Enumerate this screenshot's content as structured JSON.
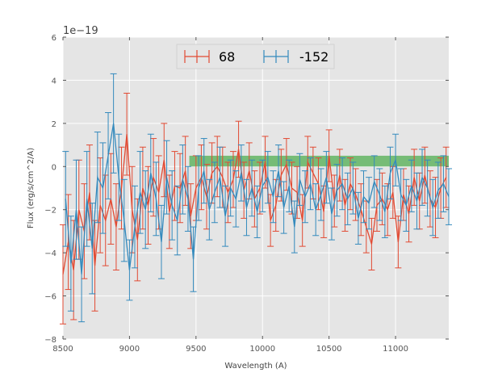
{
  "chart_data": {
    "type": "line",
    "title": "",
    "xlabel": "Wavelength (A)",
    "ylabel": "Flux (erg/s/cm^2/A)",
    "offset_label": "1e−19",
    "xlim": [
      8500,
      11400
    ],
    "ylim": [
      -8,
      6
    ],
    "x_ticks": [
      8500,
      9000,
      9500,
      10000,
      10500,
      11000
    ],
    "y_ticks": [
      -8,
      -6,
      -4,
      -2,
      0,
      2,
      4,
      6
    ],
    "grid": true,
    "legend_position": "top-center",
    "band": {
      "x_start": 9450,
      "x_end": 11400,
      "y_start": 0.0,
      "y_end": 0.5,
      "color": "#2ca02c"
    },
    "series": [
      {
        "name": "68",
        "color": "#e24a33",
        "x": [
          8500,
          8540,
          8580,
          8620,
          8660,
          8700,
          8740,
          8780,
          8820,
          8860,
          8900,
          8940,
          8980,
          9020,
          9060,
          9100,
          9140,
          9180,
          9220,
          9260,
          9300,
          9340,
          9380,
          9420,
          9460,
          9500,
          9540,
          9580,
          9620,
          9660,
          9700,
          9740,
          9780,
          9820,
          9860,
          9900,
          9940,
          9980,
          10020,
          10060,
          10100,
          10140,
          10180,
          10220,
          10260,
          10300,
          10340,
          10380,
          10420,
          10460,
          10500,
          10540,
          10580,
          10620,
          10660,
          10700,
          10740,
          10780,
          10820,
          10860,
          10900,
          10940,
          10980,
          11020,
          11060,
          11100,
          11140,
          11180,
          11220,
          11260,
          11300,
          11340,
          11380
        ],
        "y": [
          -5.0,
          -3.5,
          -4.8,
          -2.0,
          -3.0,
          -1.2,
          -4.6,
          -1.8,
          -2.5,
          -1.5,
          -2.8,
          -1.0,
          1.5,
          -2.0,
          -3.4,
          -1.0,
          -1.8,
          -0.5,
          -1.2,
          0.3,
          -2.1,
          -0.9,
          -1.0,
          -0.2,
          -2.3,
          -1.0,
          -0.5,
          -1.4,
          -0.3,
          0.0,
          -0.5,
          -1.2,
          -0.6,
          0.8,
          -1.1,
          -0.2,
          -1.5,
          -1.0,
          0.2,
          -2.5,
          -1.8,
          -0.4,
          0.1,
          -1.0,
          -1.2,
          -2.5,
          0.2,
          -0.3,
          -0.8,
          -2.1,
          0.5,
          -1.6,
          -0.4,
          -1.8,
          -0.8,
          -1.3,
          -2.0,
          -2.8,
          -3.6,
          -1.8,
          -1.5,
          -2.0,
          -1.2,
          -3.5,
          -1.3,
          -2.2,
          -0.5,
          -1.6,
          -0.4,
          -1.5,
          -1.9,
          -1.0,
          -0.5
        ],
        "err": [
          2.3,
          2.2,
          2.3,
          2.3,
          2.2,
          2.2,
          2.1,
          2.2,
          2.1,
          2.1,
          2.0,
          1.9,
          1.9,
          2.0,
          1.9,
          1.9,
          1.8,
          1.8,
          1.7,
          1.7,
          1.7,
          1.6,
          1.6,
          1.6,
          1.5,
          1.5,
          1.5,
          1.5,
          1.4,
          1.4,
          1.4,
          1.4,
          1.3,
          1.3,
          1.3,
          1.3,
          1.3,
          1.2,
          1.2,
          1.2,
          1.2,
          1.2,
          1.2,
          1.2,
          1.2,
          1.2,
          1.2,
          1.2,
          1.2,
          1.2,
          1.2,
          1.2,
          1.2,
          1.2,
          1.2,
          1.2,
          1.2,
          1.2,
          1.2,
          1.2,
          1.2,
          1.2,
          1.2,
          1.2,
          1.2,
          1.3,
          1.3,
          1.3,
          1.3,
          1.3,
          1.4,
          1.4,
          1.4
        ]
      },
      {
        "name": "-152",
        "color": "#348abd",
        "x": [
          8520,
          8560,
          8600,
          8640,
          8680,
          8720,
          8760,
          8800,
          8840,
          8880,
          8920,
          8960,
          9000,
          9040,
          9080,
          9120,
          9160,
          9200,
          9240,
          9280,
          9320,
          9360,
          9400,
          9440,
          9480,
          9520,
          9560,
          9600,
          9640,
          9680,
          9720,
          9760,
          9800,
          9840,
          9880,
          9920,
          9960,
          10000,
          10040,
          10080,
          10120,
          10160,
          10200,
          10240,
          10280,
          10320,
          10360,
          10400,
          10440,
          10480,
          10520,
          10560,
          10600,
          10640,
          10680,
          10720,
          10760,
          10800,
          10840,
          10880,
          10920,
          10960,
          11000,
          11040,
          11080,
          11120,
          11160,
          11200,
          11240,
          11280,
          11320,
          11360,
          11400
        ],
        "y": [
          -1.5,
          -4.5,
          -2.0,
          -5.0,
          -1.5,
          -3.8,
          -0.5,
          -1.0,
          0.5,
          2.0,
          -0.5,
          -2.5,
          -4.8,
          -2.8,
          -1.2,
          -2.0,
          -0.3,
          -1.5,
          -3.5,
          -0.5,
          -1.8,
          -2.5,
          -0.6,
          -1.5,
          -4.3,
          -1.0,
          -0.2,
          -2.0,
          -1.2,
          -0.5,
          -2.3,
          -1.0,
          -1.5,
          -0.3,
          -1.9,
          -1.0,
          -2.1,
          -0.9,
          -0.5,
          -1.4,
          -0.2,
          -1.9,
          -0.9,
          -2.8,
          -0.6,
          -1.4,
          -0.8,
          -2.0,
          -1.3,
          -0.5,
          -2.2,
          -1.1,
          -0.8,
          -1.5,
          -1.0,
          -2.4,
          -1.4,
          -1.7,
          -0.7,
          -1.3,
          -2.1,
          -0.3,
          0.3,
          -1.3,
          -1.8,
          -0.9,
          -1.6,
          -0.5,
          -1.0,
          -1.9,
          -1.1,
          -0.8,
          -1.4
        ],
        "err": [
          2.2,
          2.2,
          2.3,
          2.2,
          2.2,
          2.1,
          2.1,
          2.1,
          2.0,
          2.3,
          2.0,
          1.9,
          1.4,
          1.9,
          1.9,
          1.8,
          1.8,
          1.7,
          1.7,
          1.7,
          1.6,
          1.6,
          1.6,
          1.5,
          1.5,
          1.5,
          1.5,
          1.4,
          1.4,
          1.4,
          1.4,
          1.3,
          1.3,
          1.3,
          1.3,
          1.3,
          1.2,
          1.2,
          1.2,
          1.2,
          1.2,
          1.2,
          1.2,
          1.2,
          1.2,
          1.2,
          1.2,
          1.2,
          1.2,
          1.2,
          1.2,
          1.2,
          1.2,
          1.2,
          1.2,
          1.2,
          1.2,
          1.2,
          1.2,
          1.2,
          1.2,
          1.2,
          1.2,
          1.2,
          1.2,
          1.2,
          1.3,
          1.3,
          1.3,
          1.3,
          1.3,
          1.3,
          1.3
        ]
      }
    ]
  }
}
